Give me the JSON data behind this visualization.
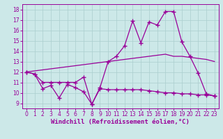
{
  "background_color": "#cce8e8",
  "grid_color": "#aacece",
  "line_color": "#990099",
  "xlabel": "Windchill (Refroidissement éolien,°C)",
  "xlim": [
    -0.5,
    23.5
  ],
  "ylim": [
    8.5,
    18.5
  ],
  "xticks": [
    0,
    1,
    2,
    3,
    4,
    5,
    6,
    7,
    8,
    9,
    10,
    11,
    12,
    13,
    14,
    15,
    16,
    17,
    18,
    19,
    20,
    21,
    22,
    23
  ],
  "yticks": [
    9,
    10,
    11,
    12,
    13,
    14,
    15,
    16,
    17,
    18
  ],
  "line_bottom_x": [
    0,
    1,
    2,
    3,
    4,
    5,
    6,
    7,
    8,
    9,
    10,
    11,
    12,
    13,
    14,
    15,
    16,
    17,
    18,
    19,
    20,
    21,
    22,
    23
  ],
  "line_bottom_y": [
    12.0,
    11.8,
    10.4,
    10.7,
    9.5,
    10.8,
    10.5,
    10.1,
    8.9,
    10.4,
    10.3,
    10.3,
    10.3,
    10.3,
    10.3,
    10.2,
    10.1,
    10.0,
    10.0,
    9.9,
    9.9,
    9.8,
    9.8,
    9.7
  ],
  "line_mid_x": [
    0,
    1,
    2,
    3,
    4,
    5,
    6,
    7,
    8,
    9,
    10,
    11,
    12,
    13,
    14,
    15,
    16,
    17,
    18,
    19,
    20,
    21,
    22,
    23
  ],
  "line_mid_y": [
    12.0,
    12.1,
    12.2,
    12.3,
    12.4,
    12.5,
    12.6,
    12.7,
    12.8,
    12.9,
    13.0,
    13.1,
    13.2,
    13.3,
    13.4,
    13.5,
    13.6,
    13.7,
    13.5,
    13.5,
    13.4,
    13.3,
    13.2,
    13.0
  ],
  "line_top_x": [
    0,
    1,
    2,
    3,
    4,
    5,
    6,
    7,
    8,
    9,
    10,
    11,
    12,
    13,
    14,
    15,
    16,
    17,
    18,
    19,
    20,
    21,
    22,
    23
  ],
  "line_top_y": [
    12.0,
    11.8,
    11.0,
    11.0,
    11.0,
    11.0,
    11.0,
    11.5,
    8.9,
    10.5,
    13.0,
    13.5,
    14.5,
    16.9,
    14.8,
    16.8,
    16.5,
    17.8,
    17.8,
    14.9,
    13.5,
    11.9,
    9.9,
    9.7
  ],
  "markersize": 2.0,
  "linewidth": 0.9,
  "tick_fontsize": 5.5,
  "xlabel_fontsize": 6.5
}
